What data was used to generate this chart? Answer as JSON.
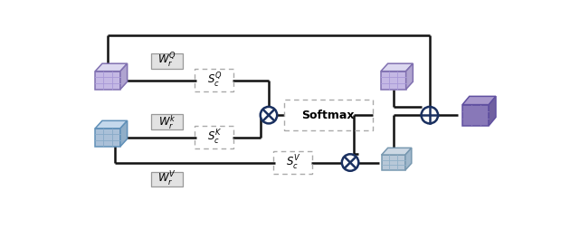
{
  "bg_color": "#ffffff",
  "line_color": "#111111",
  "circle_color": "#1a3060",
  "softmax_text": "Softmax",
  "labels": {
    "WQ": "$W_r^Q$",
    "Wk": "$W_r^k$",
    "WV": "$W_r^V$",
    "ScQ": "$S_c^Q$",
    "ScK": "$S_c^K$",
    "ScV": "$S_c^V$"
  }
}
